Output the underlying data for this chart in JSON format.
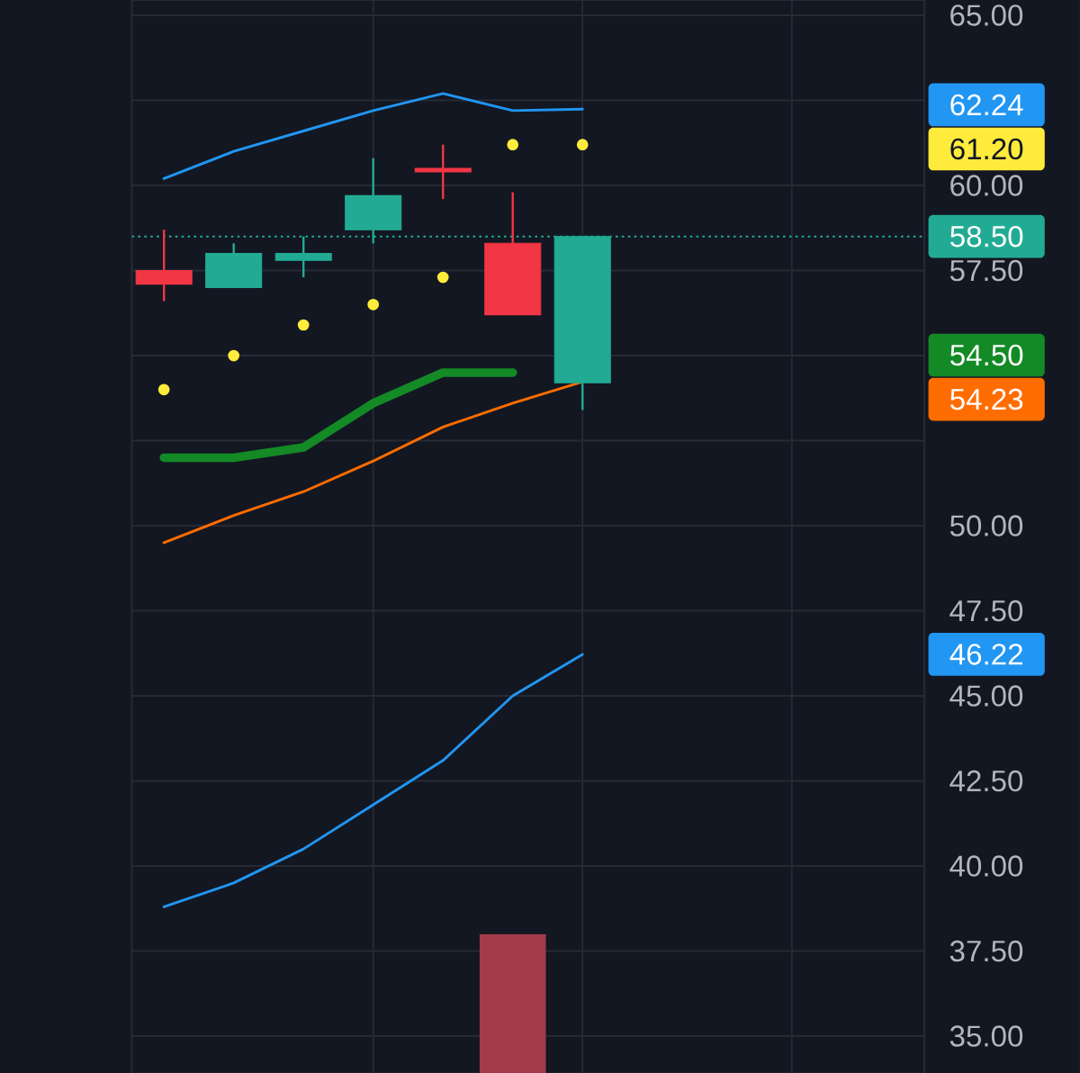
{
  "chart_data": {
    "type": "candlestick",
    "categories": [
      null,
      null,
      null,
      null,
      null,
      null,
      null
    ],
    "ohlc": [
      [
        57.5,
        58.7,
        56.6,
        57.1
      ],
      [
        57.0,
        58.3,
        57.0,
        58.0
      ],
      [
        57.8,
        58.5,
        57.3,
        58.0
      ],
      [
        58.7,
        60.8,
        58.3,
        59.7
      ],
      [
        60.5,
        61.2,
        59.6,
        60.4
      ],
      [
        58.3,
        59.8,
        56.2,
        56.2
      ],
      [
        54.2,
        58.5,
        53.4,
        58.5
      ]
    ],
    "colors": [
      "#f23645",
      "#22ab94",
      "#22ab94",
      "#22ab94",
      "#f23645",
      "#f23645",
      "#22ab94"
    ],
    "series": [
      {
        "type": "bar",
        "color": "#a33b4b",
        "values": [
          null,
          null,
          null,
          null,
          null,
          38.0,
          null
        ]
      },
      {
        "type": "line",
        "color": "#2196f3",
        "values": [
          60.2,
          61.0,
          61.6,
          62.2,
          62.7,
          62.2,
          62.24
        ]
      },
      {
        "type": "line",
        "color": "#ff6d00",
        "values": [
          49.5,
          50.3,
          51.0,
          51.9,
          52.9,
          53.6,
          54.23
        ]
      },
      {
        "type": "line",
        "color": "#2196f3",
        "values": [
          38.8,
          39.5,
          40.5,
          41.8,
          43.1,
          45.0,
          46.22
        ]
      },
      {
        "type": "line",
        "color": "#138a25",
        "values": [
          52.0,
          52.0,
          52.3,
          53.6,
          54.5,
          54.5,
          null
        ]
      },
      {
        "type": "scatter",
        "color": "#ffeb3b",
        "marker": "circle",
        "values": [
          54.0,
          55.0,
          55.9,
          56.5,
          57.3,
          61.2,
          61.2
        ]
      }
    ],
    "annotations": [
      "62.24",
      "54.23",
      "46.22",
      "54.50",
      "61.20"
    ],
    "ref_lines": [
      {
        "axis": "y",
        "value": 58.5,
        "label": "58.50",
        "color": "#22ab94",
        "line_style": "dotted"
      }
    ],
    "ylim": [
      33.9,
      65.45
    ],
    "yticks": [
      {
        "value": 35,
        "label": "35.00"
      },
      {
        "value": 37.5,
        "label": "37.50"
      },
      {
        "value": 40,
        "label": "40.00"
      },
      {
        "value": 42.5,
        "label": "42.50"
      },
      {
        "value": 45,
        "label": "45.00"
      },
      {
        "value": 47.5,
        "label": "47.50"
      },
      {
        "value": 50,
        "label": "50.00"
      },
      {
        "value": 52.5,
        "label": null
      },
      {
        "value": 55,
        "label": null
      },
      {
        "value": 57.5,
        "label": "57.50"
      },
      {
        "value": 60,
        "label": "60.00"
      },
      {
        "value": 62.5,
        "label": null
      },
      {
        "value": 65,
        "label": "65.00"
      }
    ],
    "grid": true,
    "tick_labels": "y"
  }
}
